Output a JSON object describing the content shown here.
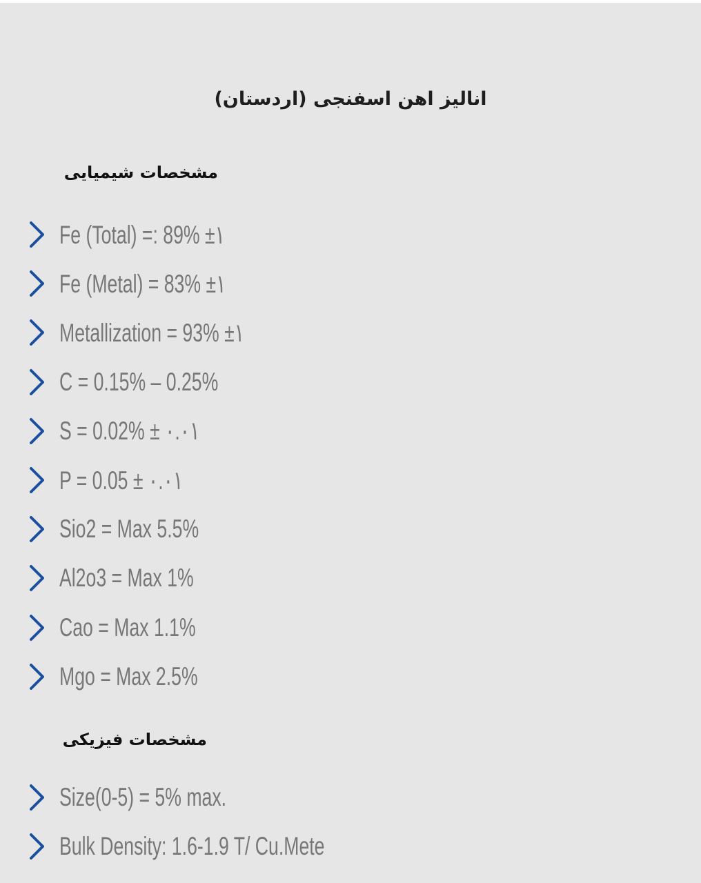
{
  "title": "انالیز اهن اسفنجی (اردستان)",
  "chemical": {
    "heading": "مشخصات شیمیایی",
    "items": [
      "Fe (Total) =: 89% ±١",
      "Fe (Metal) = 83% ±١",
      "Metallization = 93% ±١",
      "C = 0.15% – 0.25%",
      "S = 0.02% ± ٠.٠١",
      "P = 0.05 ± ٠.٠١",
      "Sio2 = Max 5.5%",
      "Al2o3 = Max 1%",
      "Cao = Max 1.1%",
      "Mgo = Max 2.5%"
    ]
  },
  "physical": {
    "heading": "مشخصات فیزیکی",
    "items": [
      "Size(0-5) = 5% max.",
      "Bulk Density: 1.6-1.9 T/ Cu.Mete"
    ]
  },
  "colors": {
    "chevron": "#1a4fa0",
    "text": "#777777",
    "background": "#e6e6e6"
  },
  "icons": {
    "bullet": "chevron-right-icon"
  }
}
